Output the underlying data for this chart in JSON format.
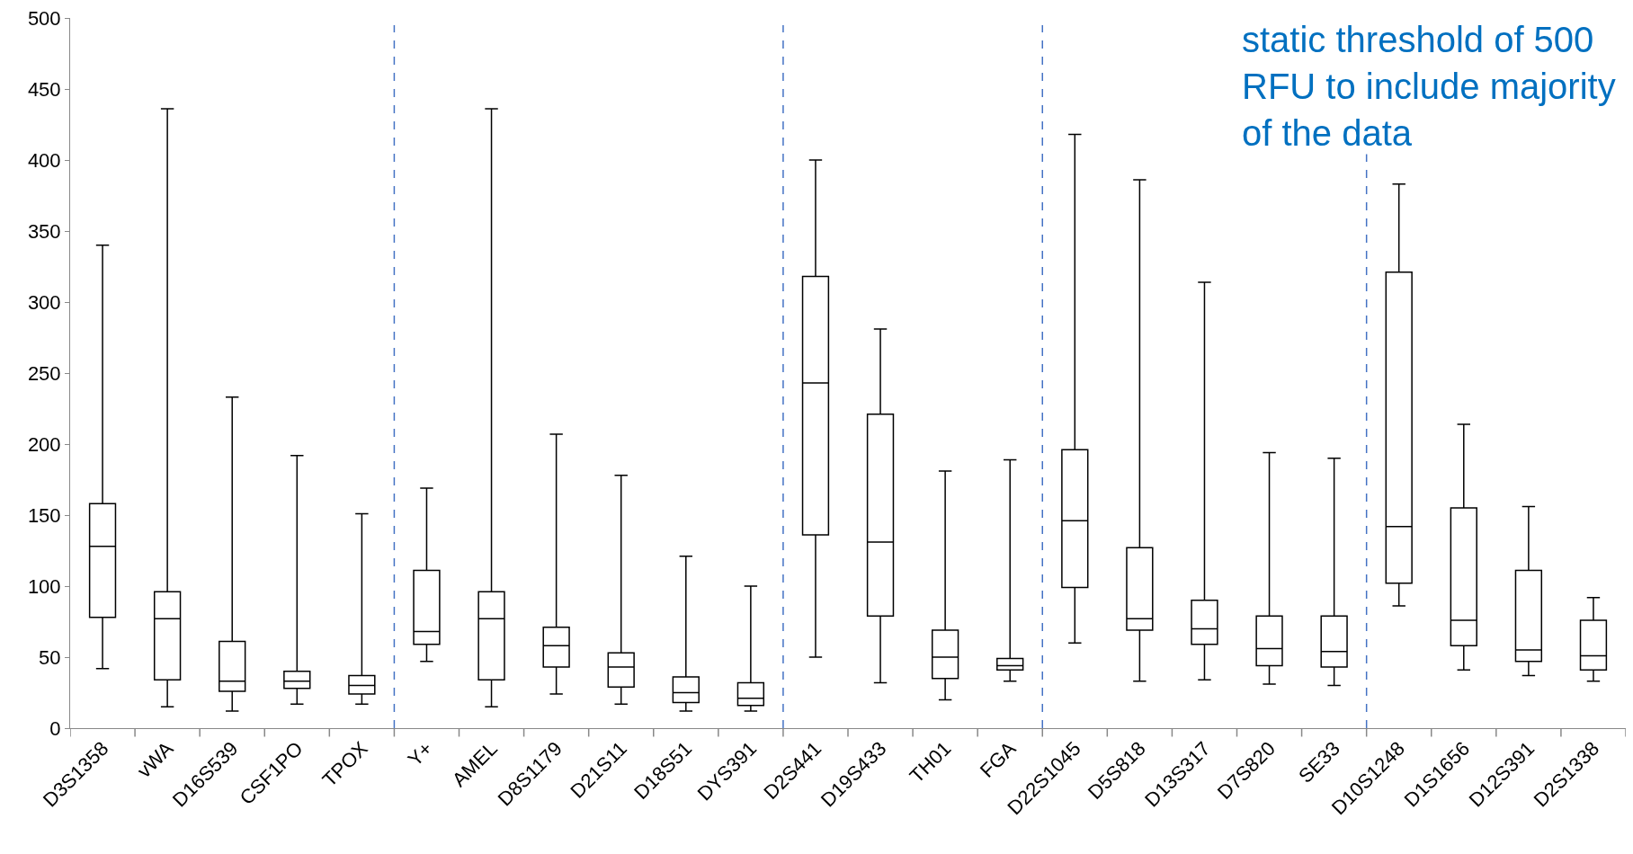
{
  "chart_data": {
    "type": "box",
    "categories": [
      "D3S1358",
      "vWA",
      "D16S539",
      "CSF1PO",
      "TPOX",
      "Y+",
      "AMEL",
      "D8S1179",
      "D21S11",
      "D18S51",
      "DYS391",
      "D2S441",
      "D19S433",
      "TH01",
      "FGA",
      "D22S1045",
      "D5S818",
      "D13S317",
      "D7S820",
      "SE33",
      "D10S1248",
      "D1S1656",
      "D12S391",
      "D2S1338"
    ],
    "series": [
      {
        "color": "#000000",
        "boxes": [
          {
            "low": 42,
            "q1": 78,
            "median": 128,
            "q3": 158,
            "high": 340
          },
          {
            "low": 15,
            "q1": 34,
            "median": 77,
            "q3": 96,
            "high": 436
          },
          {
            "low": 12,
            "q1": 26,
            "median": 33,
            "q3": 61,
            "high": 233
          },
          {
            "low": 17,
            "q1": 28,
            "median": 33,
            "q3": 40,
            "high": 192
          },
          {
            "low": 17,
            "q1": 24,
            "median": 30,
            "q3": 37,
            "high": 151
          },
          {
            "low": 47,
            "q1": 59,
            "median": 68,
            "q3": 111,
            "high": 169
          },
          {
            "low": 15,
            "q1": 34,
            "median": 77,
            "q3": 96,
            "high": 436
          },
          {
            "low": 24,
            "q1": 43,
            "median": 58,
            "q3": 71,
            "high": 207
          },
          {
            "low": 17,
            "q1": 29,
            "median": 43,
            "q3": 53,
            "high": 178
          },
          {
            "low": 12,
            "q1": 18,
            "median": 25,
            "q3": 36,
            "high": 121
          },
          {
            "low": 12,
            "q1": 16,
            "median": 21,
            "q3": 32,
            "high": 100
          },
          {
            "low": 50,
            "q1": 136,
            "median": 243,
            "q3": 318,
            "high": 400
          },
          {
            "low": 32,
            "q1": 79,
            "median": 131,
            "q3": 221,
            "high": 281
          },
          {
            "low": 20,
            "q1": 35,
            "median": 50,
            "q3": 69,
            "high": 181
          },
          {
            "low": 33,
            "q1": 41,
            "median": 44,
            "q3": 49,
            "high": 189
          },
          {
            "low": 60,
            "q1": 99,
            "median": 146,
            "q3": 196,
            "high": 418
          },
          {
            "low": 33,
            "q1": 69,
            "median": 77,
            "q3": 127,
            "high": 386
          },
          {
            "low": 34,
            "q1": 59,
            "median": 70,
            "q3": 90,
            "high": 314
          },
          {
            "low": 31,
            "q1": 44,
            "median": 56,
            "q3": 79,
            "high": 194
          },
          {
            "low": 30,
            "q1": 43,
            "median": 54,
            "q3": 79,
            "high": 190
          },
          {
            "low": 86,
            "q1": 102,
            "median": 142,
            "q3": 321,
            "high": 383
          },
          {
            "low": 41,
            "q1": 58,
            "median": 76,
            "q3": 155,
            "high": 214
          },
          {
            "low": 37,
            "q1": 47,
            "median": 55,
            "q3": 111,
            "high": 156
          },
          {
            "low": 33,
            "q1": 41,
            "median": 51,
            "q3": 76,
            "high": 92
          }
        ]
      }
    ],
    "ylim": [
      0,
      500
    ],
    "yticks": [
      0,
      50,
      100,
      150,
      200,
      250,
      300,
      350,
      400,
      450,
      500
    ],
    "annotations": [
      "static threshold of 500 RFU to include majority of the data"
    ]
  }
}
